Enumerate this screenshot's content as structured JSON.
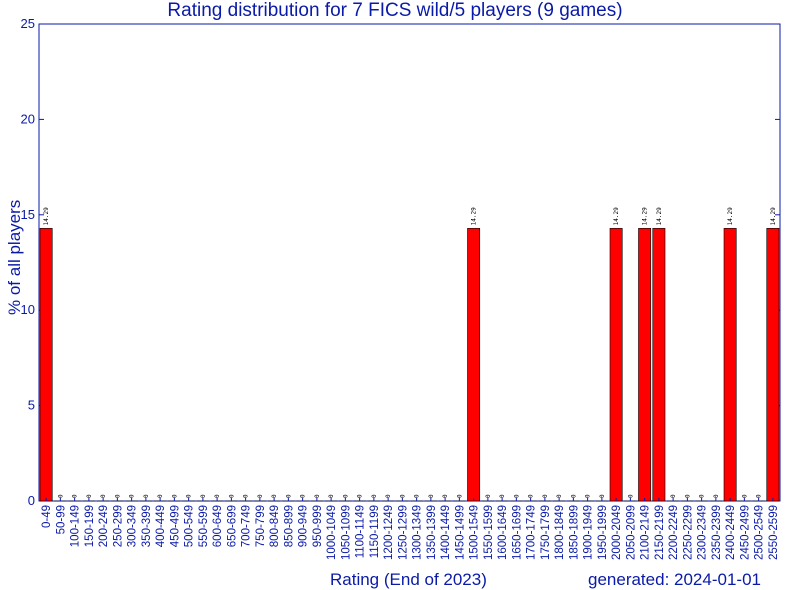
{
  "chart_data": {
    "type": "bar",
    "title": "Rating distribution for 7 FICS wild/5 players (9 games)",
    "xlabel": "Rating (End of 2023)",
    "ylabel": "% of all players",
    "footer": "generated: 2024-01-01",
    "ylim": [
      0,
      25
    ],
    "yticks": [
      0,
      5,
      10,
      15,
      20,
      25
    ],
    "categories": [
      "0-49",
      "50-99",
      "100-149",
      "150-199",
      "200-249",
      "250-299",
      "300-349",
      "350-399",
      "400-449",
      "450-499",
      "500-549",
      "550-599",
      "600-649",
      "650-699",
      "700-749",
      "750-799",
      "800-849",
      "850-899",
      "900-949",
      "950-999",
      "1000-1049",
      "1050-1099",
      "1100-1149",
      "1150-1199",
      "1200-1249",
      "1250-1299",
      "1300-1349",
      "1350-1399",
      "1400-1449",
      "1450-1499",
      "1500-1549",
      "1550-1599",
      "1600-1649",
      "1650-1699",
      "1700-1749",
      "1750-1799",
      "1800-1849",
      "1850-1899",
      "1900-1949",
      "1950-1999",
      "2000-2049",
      "2050-2099",
      "2100-2149",
      "2150-2199",
      "2200-2249",
      "2250-2299",
      "2300-2349",
      "2350-2399",
      "2400-2449",
      "2450-2499",
      "2500-2549",
      "2550-2599"
    ],
    "values": [
      14.29,
      0,
      0,
      0,
      0,
      0,
      0,
      0,
      0,
      0,
      0,
      0,
      0,
      0,
      0,
      0,
      0,
      0,
      0,
      0,
      0,
      0,
      0,
      0,
      0,
      0,
      0,
      0,
      0,
      0,
      14.29,
      0,
      0,
      0,
      0,
      0,
      0,
      0,
      0,
      0,
      14.29,
      0,
      14.29,
      14.29,
      0,
      0,
      0,
      0,
      14.29,
      0,
      0,
      14.29
    ],
    "value_labels": [
      "14.29",
      "0",
      "0",
      "0",
      "0",
      "0",
      "0",
      "0",
      "0",
      "0",
      "0",
      "0",
      "0",
      "0",
      "0",
      "0",
      "0",
      "0",
      "0",
      "0",
      "0",
      "0",
      "0",
      "0",
      "0",
      "0",
      "0",
      "0",
      "0",
      "0",
      "14.29",
      "0",
      "0",
      "0",
      "0",
      "0",
      "0",
      "0",
      "0",
      "0",
      "14.29",
      "0",
      "14.29",
      "14.29",
      "0",
      "0",
      "0",
      "0",
      "14.29",
      "0",
      "0",
      "14.29"
    ],
    "bar_color": "#ff0000",
    "text_color": "#0a1aa8",
    "grid": false,
    "legend": "none"
  }
}
